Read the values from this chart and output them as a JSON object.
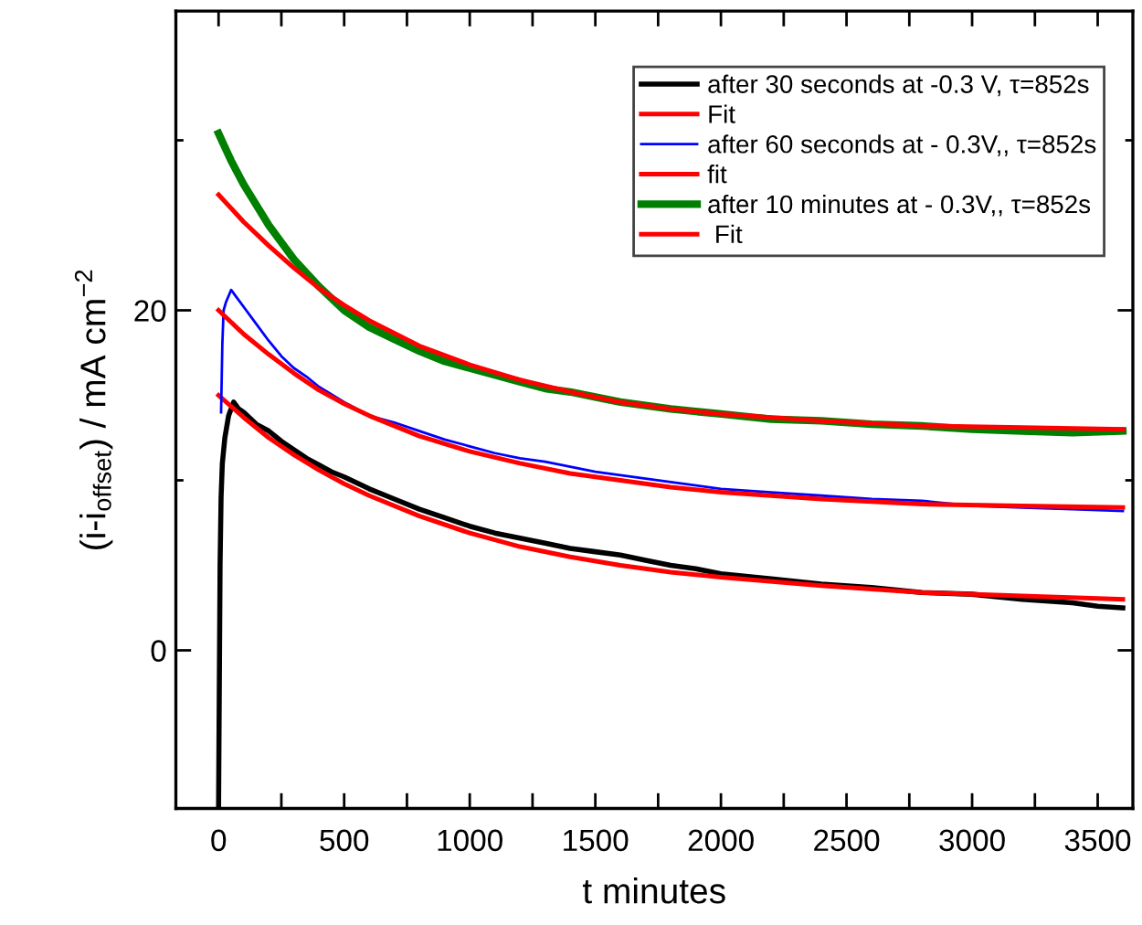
{
  "chart_data": {
    "type": "line",
    "xlabel": "t minutes",
    "ylabel": "(i-i$_{offset}$) / mA cm$^{−2}$",
    "xlim": [
      -170,
      3640
    ],
    "ylim": [
      -9.3,
      37.6
    ],
    "xticks": [
      0,
      {
        "value": 250,
        "label": null
      },
      500,
      {
        "value": 750,
        "label": null
      },
      1000,
      {
        "value": 1250,
        "label": null
      },
      1500,
      {
        "value": 1750,
        "label": null
      },
      2000,
      {
        "value": 2250,
        "label": null
      },
      2500,
      {
        "value": 2750,
        "label": null
      },
      3000,
      {
        "value": 3250,
        "label": null
      },
      3500
    ],
    "yticks": [
      0,
      {
        "value": 10,
        "label": null
      },
      20,
      {
        "value": 30,
        "label": null
      }
    ],
    "legend": "top right",
    "grid": false,
    "marker": "none",
    "line_style": "solid",
    "series": [
      {
        "name": "after 30 seconds at -0.3 V, τ=852s",
        "color": "#000000",
        "x": [
          0,
          3,
          6,
          10,
          15,
          25,
          40,
          60,
          80,
          100,
          150,
          200,
          250,
          300,
          350,
          400,
          450,
          500,
          600,
          700,
          800,
          900,
          1000,
          1100,
          1200,
          1300,
          1400,
          1500,
          1600,
          1700,
          1800,
          1900,
          2000,
          2200,
          2400,
          2600,
          2800,
          3000,
          3200,
          3400,
          3500,
          3600
        ],
        "values": [
          -9.3,
          -2,
          5,
          9,
          11,
          12.5,
          13.8,
          14.6,
          14.2,
          14.0,
          13.3,
          12.9,
          12.3,
          11.8,
          11.3,
          10.9,
          10.5,
          10.2,
          9.5,
          8.9,
          8.3,
          7.8,
          7.3,
          6.9,
          6.6,
          6.3,
          6.0,
          5.8,
          5.6,
          5.3,
          5.0,
          4.8,
          4.5,
          4.2,
          3.9,
          3.7,
          3.4,
          3.3,
          3.0,
          2.8,
          2.6,
          2.5
        ]
      },
      {
        "name": "Fit",
        "color": "#ff0000",
        "x": [
          0,
          100,
          200,
          300,
          400,
          500,
          600,
          800,
          1000,
          1200,
          1400,
          1600,
          1800,
          2000,
          2400,
          2800,
          3200,
          3600
        ],
        "values": [
          15.0,
          13.7,
          12.5,
          11.5,
          10.6,
          9.8,
          9.1,
          7.9,
          6.9,
          6.1,
          5.5,
          5.0,
          4.6,
          4.3,
          3.8,
          3.4,
          3.2,
          3.0
        ]
      },
      {
        "name": "after 60 seconds at - 0.3V,, τ=852s",
        "color": "#0000ff",
        "x": [
          10,
          15,
          20,
          30,
          50,
          70,
          100,
          150,
          200,
          250,
          300,
          350,
          400,
          500,
          600,
          700,
          800,
          900,
          1000,
          1100,
          1200,
          1300,
          1400,
          1500,
          1600,
          1800,
          2000,
          2200,
          2400,
          2600,
          2800,
          3000,
          3200,
          3400,
          3600
        ],
        "values": [
          14.0,
          18,
          20.0,
          20.5,
          21.2,
          20.8,
          20.2,
          19.2,
          18.2,
          17.3,
          16.6,
          16.1,
          15.5,
          14.6,
          13.8,
          13.4,
          12.9,
          12.4,
          12.0,
          11.6,
          11.3,
          11.1,
          10.8,
          10.5,
          10.3,
          9.9,
          9.5,
          9.3,
          9.1,
          8.9,
          8.8,
          8.5,
          8.4,
          8.3,
          8.2
        ]
      },
      {
        "name": "fit",
        "color": "#ff0000",
        "x": [
          0,
          100,
          200,
          300,
          400,
          500,
          600,
          800,
          1000,
          1200,
          1400,
          1600,
          1800,
          2000,
          2400,
          2800,
          3200,
          3600
        ],
        "values": [
          20.0,
          18.6,
          17.4,
          16.3,
          15.3,
          14.5,
          13.8,
          12.6,
          11.7,
          11.0,
          10.4,
          10.0,
          9.6,
          9.3,
          8.9,
          8.6,
          8.5,
          8.4
        ]
      },
      {
        "name": "after 10 minutes at - 0.3V,, τ=852s",
        "color": "#008000",
        "x": [
          0,
          50,
          100,
          150,
          200,
          250,
          300,
          400,
          500,
          600,
          700,
          800,
          900,
          1000,
          1100,
          1200,
          1300,
          1400,
          1500,
          1600,
          1800,
          2000,
          2200,
          2400,
          2600,
          2800,
          3000,
          3200,
          3400,
          3600
        ],
        "values": [
          30.4,
          28.8,
          27.4,
          26.2,
          25.0,
          24.0,
          23.0,
          21.4,
          20.0,
          19.0,
          18.3,
          17.6,
          17.0,
          16.6,
          16.2,
          15.8,
          15.4,
          15.2,
          14.9,
          14.6,
          14.2,
          13.9,
          13.6,
          13.5,
          13.3,
          13.2,
          13.0,
          12.9,
          12.8,
          12.9
        ]
      },
      {
        "name": " Fit",
        "color": "#ff0000",
        "x": [
          0,
          100,
          200,
          300,
          400,
          500,
          600,
          800,
          1000,
          1200,
          1400,
          1600,
          1800,
          2000,
          2400,
          2800,
          3200,
          3600
        ],
        "values": [
          26.8,
          25.2,
          23.8,
          22.5,
          21.3,
          20.3,
          19.4,
          17.9,
          16.8,
          15.9,
          15.2,
          14.6,
          14.2,
          13.9,
          13.5,
          13.2,
          13.1,
          13.0
        ]
      }
    ]
  }
}
